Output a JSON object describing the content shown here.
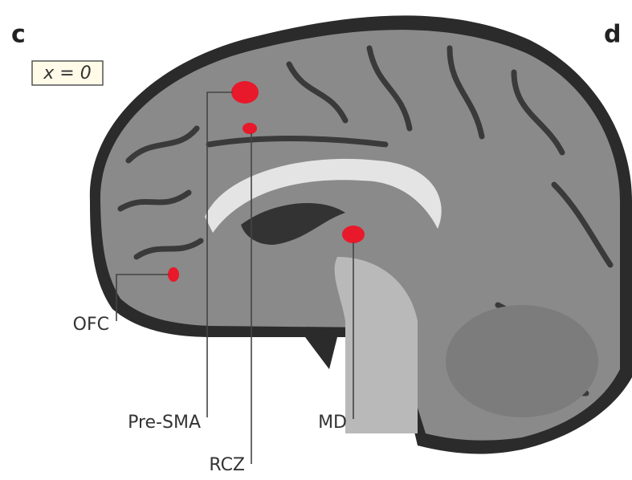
{
  "panels": [
    {
      "label": "c"
    },
    {
      "label": "d"
    }
  ],
  "coordinate": "x = 0",
  "regions": [
    {
      "label": "Pre-SMA"
    },
    {
      "label": "RCZ"
    },
    {
      "label": "OFC"
    },
    {
      "label": "MD"
    }
  ]
}
